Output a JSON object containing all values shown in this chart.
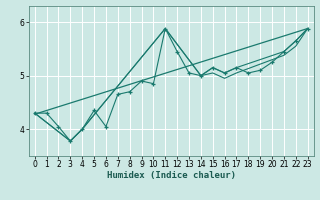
{
  "title": "",
  "xlabel": "Humidex (Indice chaleur)",
  "bg_color": "#cce8e4",
  "grid_color": "#ffffff",
  "line_color": "#1a7a6e",
  "xlim": [
    -0.5,
    23.5
  ],
  "ylim": [
    3.5,
    6.3
  ],
  "xticks": [
    0,
    1,
    2,
    3,
    4,
    5,
    6,
    7,
    8,
    9,
    10,
    11,
    12,
    13,
    14,
    15,
    16,
    17,
    18,
    19,
    20,
    21,
    22,
    23
  ],
  "yticks": [
    4,
    5,
    6
  ],
  "series1_x": [
    0,
    1,
    2,
    3,
    4,
    5,
    6,
    7,
    8,
    9,
    10,
    11,
    12,
    13,
    14,
    15,
    16,
    17,
    18,
    19,
    20,
    21,
    22,
    23
  ],
  "series1_y": [
    4.3,
    4.3,
    4.05,
    3.78,
    4.0,
    4.35,
    4.05,
    4.65,
    4.7,
    4.9,
    4.85,
    5.88,
    5.45,
    5.05,
    5.0,
    5.15,
    5.05,
    5.15,
    5.05,
    5.1,
    5.25,
    5.45,
    5.65,
    5.88
  ],
  "series2_x": [
    0,
    23
  ],
  "series2_y": [
    4.28,
    5.88
  ],
  "series3_x": [
    0,
    3,
    4,
    11,
    14,
    15,
    16,
    17,
    21,
    22,
    23
  ],
  "series3_y": [
    4.3,
    3.78,
    4.0,
    5.88,
    5.0,
    5.15,
    5.05,
    5.15,
    5.45,
    5.65,
    5.88
  ],
  "series4_x": [
    0,
    3,
    4,
    11,
    14,
    15,
    16,
    17,
    21,
    22,
    23
  ],
  "series4_y": [
    4.3,
    3.78,
    4.0,
    5.88,
    5.0,
    5.05,
    4.95,
    5.05,
    5.38,
    5.55,
    5.88
  ]
}
